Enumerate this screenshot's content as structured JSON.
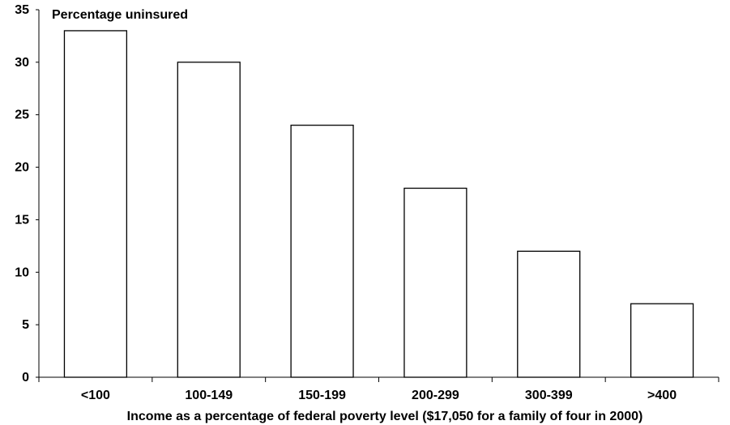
{
  "chart_data": {
    "type": "bar",
    "title": "",
    "ylabel": "Percentage uninsured",
    "xlabel": "Income as a percentage of federal poverty level ($17,050 for a family of four in 2000)",
    "categories": [
      "<100",
      "100-149",
      "150-199",
      "200-299",
      "300-399",
      ">400"
    ],
    "values": [
      33,
      30,
      24,
      18,
      12,
      7
    ],
    "ylim": [
      0,
      35
    ],
    "yticks": [
      0,
      5,
      10,
      15,
      20,
      25,
      30,
      35
    ],
    "grid": false,
    "legend": "none",
    "bar_fill": "#ffffff",
    "bar_stroke": "#000000"
  }
}
